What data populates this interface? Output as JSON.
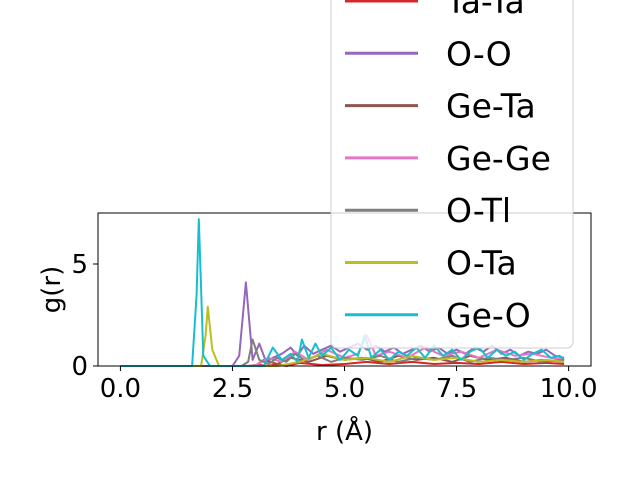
{
  "chart_data": {
    "type": "line",
    "title": "",
    "xlabel": "r (Å)",
    "ylabel": "g(r)",
    "xlim": [
      -0.5,
      10.5
    ],
    "ylim": [
      0,
      7.5
    ],
    "xticks": [
      "0.0",
      "2.5",
      "5.0",
      "7.5",
      "10.0"
    ],
    "yticks": [
      "0",
      "5"
    ],
    "grid": false,
    "legend_position": "top-right",
    "series": [
      {
        "name": "Ta-Ta",
        "color": "#d62728",
        "x": [
          0,
          2.8,
          3.1,
          3.3,
          3.5,
          3.7,
          4.0,
          4.5,
          5.0,
          5.5,
          6.0,
          6.5,
          7.0,
          7.5,
          8.0,
          8.5,
          9.0,
          9.5,
          9.9
        ],
        "y": [
          0,
          0,
          0.05,
          0,
          0.1,
          0,
          0.15,
          0.05,
          0.1,
          0.2,
          0.1,
          0.2,
          0.1,
          0.15,
          0.1,
          0.2,
          0.1,
          0.15,
          0.1
        ]
      },
      {
        "name": "O-O",
        "color": "#9467bd",
        "x": [
          0,
          2.5,
          2.65,
          2.8,
          2.95,
          3.1,
          3.25,
          3.4,
          3.6,
          3.8,
          3.95,
          4.1,
          4.3,
          4.5,
          4.7,
          4.9,
          5.1,
          5.3,
          5.5,
          5.7,
          5.9,
          6.1,
          6.3,
          6.5,
          6.7,
          6.9,
          7.1,
          7.3,
          7.5,
          7.7,
          7.9,
          8.1,
          8.3,
          8.5,
          8.7,
          8.9,
          9.1,
          9.3,
          9.5,
          9.7,
          9.9
        ],
        "y": [
          0,
          0,
          0.5,
          4.1,
          0.3,
          1.1,
          0.2,
          0.4,
          0.6,
          0.9,
          0.5,
          1.0,
          0.6,
          0.8,
          1.0,
          0.7,
          0.9,
          1.1,
          0.8,
          1.0,
          0.7,
          0.9,
          0.6,
          0.8,
          1.0,
          0.7,
          0.9,
          0.6,
          0.8,
          0.6,
          0.9,
          0.7,
          1.0,
          0.6,
          0.8,
          0.5,
          0.7,
          0.6,
          0.8,
          0.5,
          0.4
        ]
      },
      {
        "name": "Ge-Ta",
        "color": "#8c564b",
        "x": [
          0,
          3.0,
          3.2,
          3.5,
          3.8,
          4.2,
          4.6,
          5.0,
          5.4,
          5.8,
          6.2,
          6.6,
          7.0,
          7.4,
          7.8,
          8.2,
          8.6,
          9.0,
          9.4,
          9.9
        ],
        "y": [
          0,
          0,
          0.3,
          0.1,
          0.4,
          0.2,
          0.5,
          0.3,
          0.4,
          0.2,
          0.5,
          0.3,
          0.4,
          0.2,
          0.5,
          0.3,
          0.4,
          0.2,
          0.3,
          0.2
        ]
      },
      {
        "name": "Ge-Ge",
        "color": "#e377c2",
        "x": [
          0,
          3.0,
          3.3,
          3.6,
          3.9,
          4.2,
          4.6,
          5.0,
          5.3,
          5.5,
          5.7,
          6.0,
          6.4,
          6.8,
          7.2,
          7.6,
          8.0,
          8.4,
          8.8,
          9.2,
          9.6,
          9.9
        ],
        "y": [
          0,
          0,
          0.4,
          0.2,
          0.7,
          0.3,
          0.8,
          0.4,
          0.6,
          1.5,
          0.5,
          0.7,
          0.4,
          0.9,
          0.5,
          0.7,
          0.4,
          0.8,
          0.5,
          0.6,
          0.4,
          0.3
        ]
      },
      {
        "name": "O-Tl",
        "color": "#7f7f7f",
        "x": [
          0,
          2.7,
          2.85,
          2.95,
          3.1,
          3.3,
          3.5,
          3.7,
          3.9,
          4.1,
          4.4,
          4.7,
          5.0,
          5.4,
          5.8,
          6.2,
          6.6,
          7.0,
          7.4,
          7.8,
          8.2,
          8.6,
          9.0,
          9.4,
          9.9
        ],
        "y": [
          0,
          0,
          0.2,
          1.3,
          0.3,
          0.1,
          0.4,
          0.2,
          0.6,
          0.3,
          0.5,
          0.2,
          0.4,
          0.3,
          0.5,
          0.2,
          0.4,
          0.3,
          0.5,
          0.2,
          0.4,
          0.3,
          0.4,
          0.2,
          0.3
        ]
      },
      {
        "name": "O-Ta",
        "color": "#bcbd22",
        "x": [
          0,
          1.8,
          1.9,
          1.95,
          2.05,
          2.2,
          3.5,
          4.0,
          4.5,
          5.0,
          5.5,
          6.0,
          6.5,
          7.0,
          7.5,
          8.0,
          8.5,
          9.0,
          9.5,
          9.9
        ],
        "y": [
          0,
          0,
          1.5,
          2.9,
          0.8,
          0,
          0,
          0.2,
          0.6,
          0.3,
          0.4,
          0.2,
          0.5,
          0.3,
          0.4,
          0.2,
          0.3,
          0.2,
          0.3,
          0.2
        ]
      },
      {
        "name": "Ge-O",
        "color": "#17becf",
        "x": [
          0,
          1.6,
          1.7,
          1.75,
          1.85,
          2.0,
          3.2,
          3.4,
          3.6,
          3.8,
          3.95,
          4.05,
          4.2,
          4.35,
          4.5,
          4.7,
          4.9,
          5.1,
          5.3,
          5.45,
          5.6,
          5.8,
          6.0,
          6.2,
          6.4,
          6.6,
          6.8,
          7.0,
          7.2,
          7.4,
          7.6,
          7.8,
          8.0,
          8.2,
          8.4,
          8.6,
          8.8,
          9.0,
          9.2,
          9.4,
          9.6,
          9.8,
          9.9
        ],
        "y": [
          0,
          0,
          3.5,
          7.2,
          0.5,
          0,
          0,
          0.9,
          0.3,
          0.6,
          0.2,
          1.3,
          0.4,
          1.1,
          0.5,
          0.9,
          0.3,
          0.8,
          0.5,
          1.5,
          0.4,
          0.8,
          0.3,
          0.7,
          0.5,
          0.9,
          0.4,
          1.0,
          0.5,
          0.8,
          0.3,
          0.7,
          0.9,
          0.4,
          0.8,
          0.5,
          0.7,
          0.3,
          0.6,
          0.8,
          0.4,
          0.5,
          0.3
        ]
      }
    ]
  }
}
